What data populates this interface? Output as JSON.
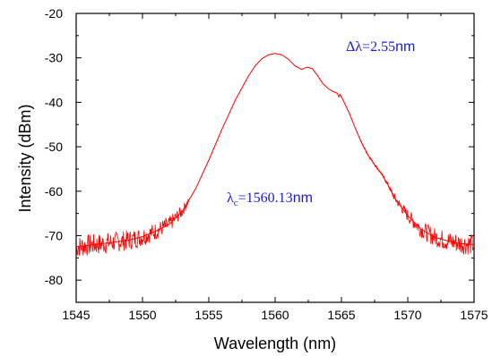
{
  "chart_data": {
    "type": "line",
    "xlabel": "Wavelength (nm)",
    "ylabel": "Intensity (dBm)",
    "xlim": [
      1545,
      1575
    ],
    "ylim": [
      -85,
      -20
    ],
    "x_ticks": [
      1545,
      1550,
      1555,
      1560,
      1565,
      1570,
      1575
    ],
    "y_ticks": [
      -20,
      -30,
      -40,
      -50,
      -60,
      -70,
      -80
    ],
    "x_tick_labels": [
      "1545",
      "1550",
      "1555",
      "1560",
      "1565",
      "1570",
      "1575"
    ],
    "y_tick_labels": [
      "-20",
      "-30",
      "-40",
      "-50",
      "-60",
      "-70",
      "-80"
    ],
    "line_color": "#ff0000",
    "grid": false,
    "series": [
      {
        "x": [
          1545,
          1547,
          1549,
          1550,
          1551,
          1552,
          1553,
          1554,
          1555,
          1556,
          1557,
          1558,
          1558.5,
          1559,
          1559.5,
          1560,
          1560.5,
          1561,
          1561.5,
          1562,
          1562.4,
          1562.8,
          1563.2,
          1563.6,
          1564,
          1564.4,
          1564.7,
          1564.8,
          1564.9,
          1565.2,
          1565.6,
          1566,
          1566.5,
          1567,
          1567.5,
          1568,
          1568.5,
          1569,
          1570,
          1571,
          1572,
          1573,
          1574,
          1575
        ],
        "y": [
          -72.5,
          -71.8,
          -71,
          -70.2,
          -69,
          -67.5,
          -64.5,
          -59.5,
          -53,
          -46,
          -39.5,
          -34,
          -31.8,
          -30.2,
          -29.3,
          -29,
          -29.3,
          -30.3,
          -31.8,
          -32.6,
          -32.1,
          -32.4,
          -34,
          -35.8,
          -36.9,
          -37.6,
          -38,
          -38.8,
          -38.2,
          -40,
          -42.5,
          -45.5,
          -49,
          -51.8,
          -54,
          -56,
          -58.5,
          -61.5,
          -65.5,
          -68.5,
          -70.3,
          -71.2,
          -71.8,
          -72
        ]
      }
    ],
    "annotations": [
      {
        "text": "Δλ=2.55",
        "unit": "nm"
      },
      {
        "symbol": "λ",
        "subscript": "c",
        "value": "=1560.13",
        "unit": "nm"
      }
    ]
  }
}
